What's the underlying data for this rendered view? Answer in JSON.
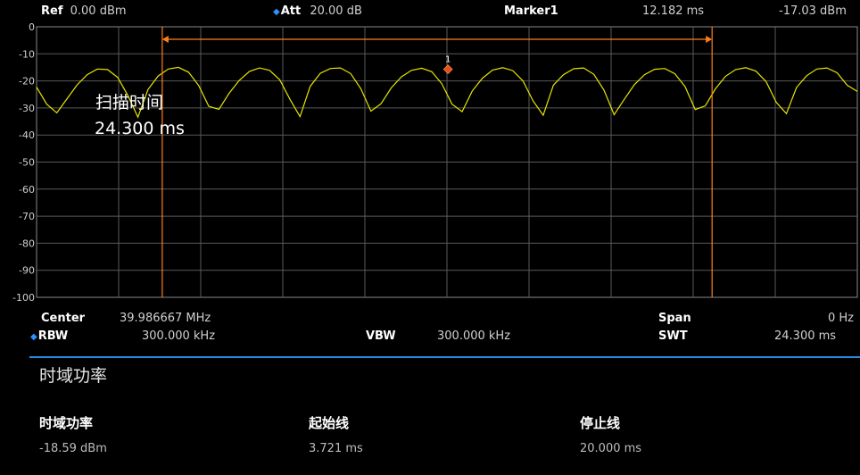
{
  "header": {
    "ref_label": "Ref",
    "ref_value": "0.00 dBm",
    "att_label": "Att",
    "att_value": "20.00 dB",
    "marker_label": "Marker1",
    "marker_time": "12.182 ms",
    "marker_level": "-17.03 dBm"
  },
  "graph": {
    "y_ticks": [
      "0",
      "-10",
      "-20",
      "-30",
      "-40",
      "-50",
      "-60",
      "-70",
      "-80",
      "-90",
      "-100"
    ],
    "marker_number": "1",
    "overlay_title": "扫描时间",
    "overlay_value": "24.300 ms",
    "trace_color": "#e6e600",
    "line_color": "#ff7f1a",
    "grid_color": "#5a5a5a"
  },
  "chart_data": {
    "type": "line",
    "xlim": [
      0,
      24.3
    ],
    "ylim": [
      -100,
      0
    ],
    "y_ticks": [
      0,
      -10,
      -20,
      -30,
      -40,
      -50,
      -60,
      -70,
      -80,
      -90,
      -100
    ],
    "series": [
      {
        "x": [
          0,
          0.3,
          0.6,
          0.9,
          1.2,
          1.5,
          1.8,
          2.1,
          2.4,
          2.7,
          3.0,
          3.3,
          3.6,
          3.9,
          4.2,
          4.5,
          4.8,
          5.1,
          5.4,
          5.7,
          6.0,
          6.3,
          6.6,
          6.9,
          7.2,
          7.5,
          7.8,
          8.1,
          8.4,
          8.7,
          9.0,
          9.3,
          9.6,
          9.9,
          10.2,
          10.5,
          10.8,
          11.1,
          11.4,
          11.7,
          12.0,
          12.3,
          12.6,
          12.9,
          13.2,
          13.5,
          13.8,
          14.1,
          14.4,
          14.7,
          15.0,
          15.3,
          15.6,
          15.9,
          16.2,
          16.5,
          16.8,
          17.1,
          17.4,
          17.7,
          18.0,
          18.3,
          18.6,
          18.9,
          19.2,
          19.5,
          19.8,
          20.1,
          20.4,
          20.7,
          21.0,
          21.3,
          21.6,
          21.9,
          22.2,
          22.5,
          22.8,
          23.1,
          23.4,
          23.7,
          24.0,
          24.3
        ],
        "values": [
          -22.3,
          -28.6,
          -31.8,
          -26.6,
          -21.5,
          -17.7,
          -15.6,
          -15.8,
          -18.7,
          -25.3,
          -33.4,
          -23.2,
          -18.2,
          -15.6,
          -15.0,
          -16.8,
          -21.7,
          -29.4,
          -30.5,
          -24.6,
          -19.8,
          -16.5,
          -15.2,
          -16.1,
          -19.6,
          -26.8,
          -33.2,
          -22.0,
          -17.2,
          -15.4,
          -15.2,
          -17.3,
          -22.9,
          -31.2,
          -28.4,
          -22.6,
          -18.5,
          -16.1,
          -15.3,
          -16.6,
          -21.1,
          -28.6,
          -31.4,
          -23.7,
          -19.0,
          -16.0,
          -15.1,
          -16.2,
          -20.0,
          -27.4,
          -32.7,
          -21.6,
          -17.7,
          -15.5,
          -15.2,
          -17.6,
          -23.4,
          -32.5,
          -26.8,
          -21.4,
          -17.7,
          -15.7,
          -15.4,
          -17.4,
          -22.1,
          -30.6,
          -29.2,
          -22.9,
          -18.3,
          -15.8,
          -15.1,
          -16.4,
          -20.3,
          -27.9,
          -32.1,
          -22.4,
          -18.1,
          -15.6,
          -15.2,
          -17.0,
          -21.6,
          -23.9
        ]
      }
    ],
    "markers": [
      {
        "label": "1",
        "x": 12.182,
        "y": -17.03
      }
    ],
    "vertical_lines": [
      3.721,
      20.0
    ]
  },
  "footer": {
    "center_label": "Center",
    "center_value": "39.986667 MHz",
    "span_label": "Span",
    "span_value": "0 Hz",
    "rbw_label": "RBW",
    "rbw_value": "300.000 kHz",
    "vbw_label": "VBW",
    "vbw_value": "300.000 kHz",
    "swt_label": "SWT",
    "swt_value": "24.300 ms"
  },
  "results": {
    "title": "时域功率",
    "columns": [
      {
        "heading": "时域功率",
        "value": "-18.59 dBm"
      },
      {
        "heading": "起始线",
        "value": "3.721 ms"
      },
      {
        "heading": "停止线",
        "value": "20.000 ms"
      }
    ]
  },
  "colors": {
    "accent": "#2b8be6"
  }
}
